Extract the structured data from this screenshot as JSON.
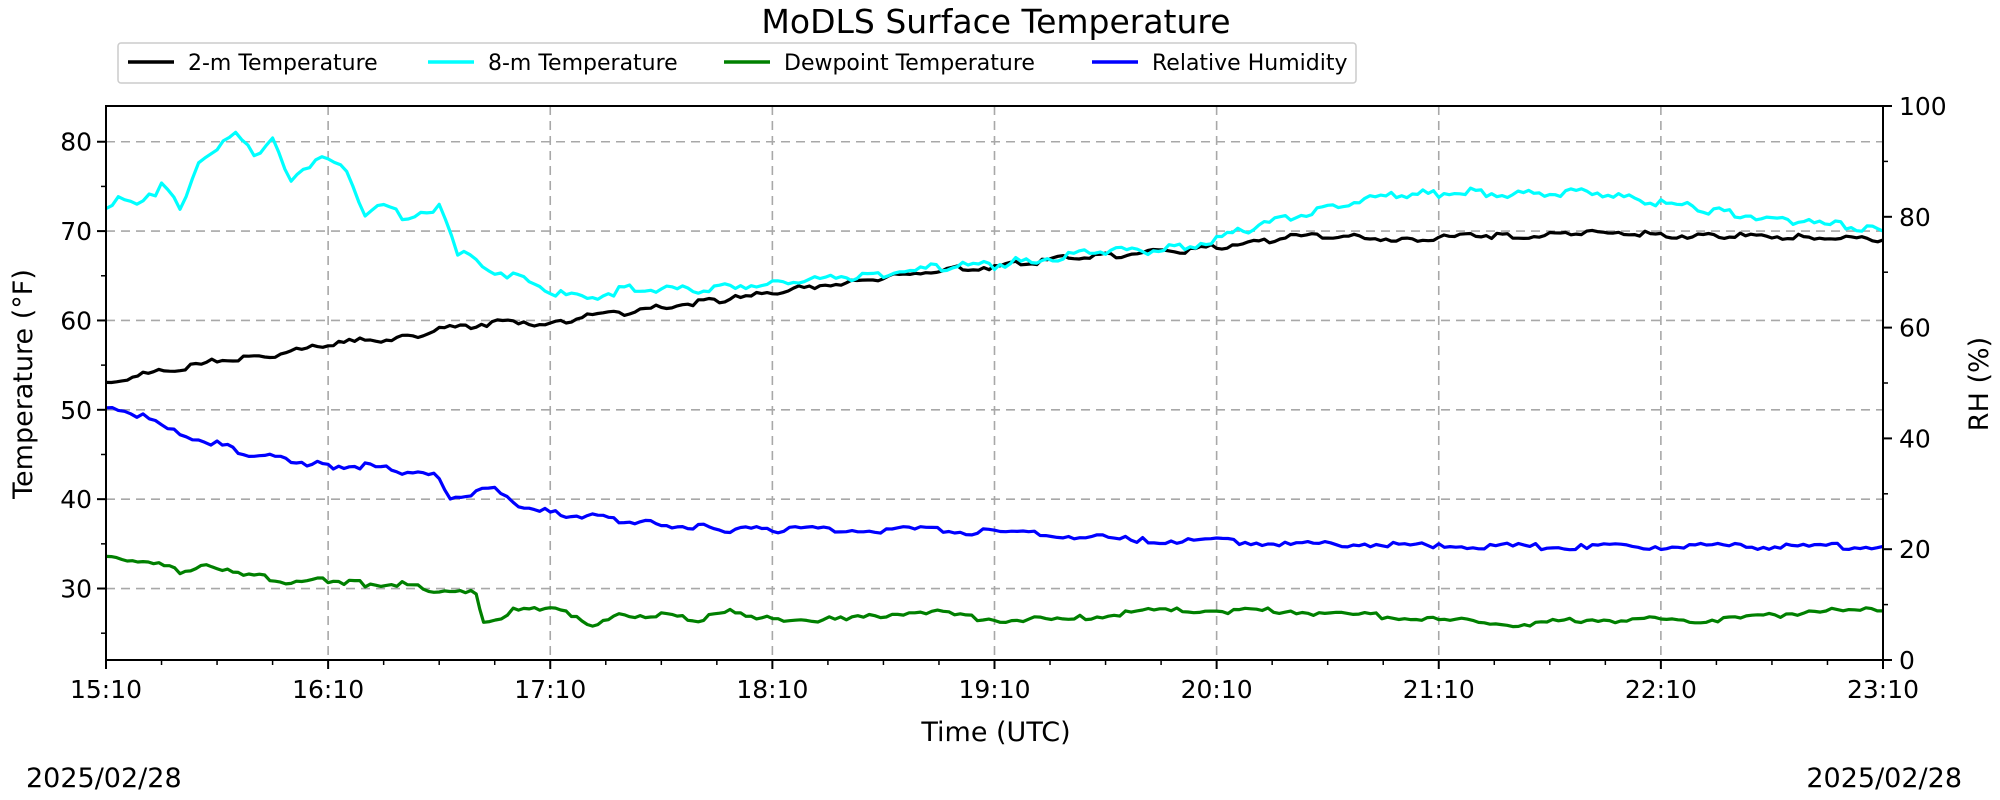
{
  "chart_data": {
    "type": "line",
    "title": "MoDLS Surface Temperature",
    "xlabel": "Time (UTC)",
    "ylabel_left": "Temperature (°F)",
    "ylabel_right": "RH (%)",
    "x_ticks": [
      "15:10",
      "16:10",
      "17:10",
      "18:10",
      "19:10",
      "20:10",
      "21:10",
      "22:10",
      "23:10"
    ],
    "x_range_minutes": [
      0,
      480
    ],
    "ylim_left": [
      22,
      84
    ],
    "ylim_right": [
      0,
      100
    ],
    "y_ticks_left": [
      30,
      40,
      50,
      60,
      70,
      80
    ],
    "y_ticks_right": [
      0,
      20,
      40,
      60,
      80,
      100
    ],
    "grid": true,
    "legend_placement": "top-left, above plot",
    "date_left": "2025/02/28",
    "date_right": "2025/02/28",
    "series": [
      {
        "name": "2-m Temperature",
        "axis": "left",
        "color": "#000000",
        "x": [
          0,
          10,
          20,
          30,
          40,
          50,
          60,
          70,
          80,
          90,
          100,
          110,
          120,
          130,
          140,
          150,
          160,
          170,
          180,
          190,
          200,
          210,
          220,
          230,
          240,
          250,
          260,
          270,
          280,
          290,
          300,
          310,
          320,
          330,
          340,
          350,
          360,
          370,
          380,
          390,
          400,
          410,
          420,
          430,
          440,
          450,
          460,
          470,
          480
        ],
        "values": [
          53,
          54,
          54.5,
          55.5,
          55.8,
          56.5,
          57.2,
          57.8,
          58,
          59,
          59.5,
          60,
          59.5,
          60.5,
          60.8,
          61.5,
          62,
          62.5,
          63,
          63.8,
          64.2,
          64.8,
          65.3,
          65.8,
          66,
          66.5,
          67,
          67.3,
          67.5,
          67.8,
          68.2,
          68.8,
          69.3,
          69.5,
          69.3,
          69,
          69.2,
          69.5,
          69.5,
          69.6,
          69.8,
          69.7,
          69.6,
          69.5,
          69.5,
          69.4,
          69.3,
          69.2,
          69
        ]
      },
      {
        "name": "8-m Temperature",
        "axis": "left",
        "color": "#00ffff",
        "x": [
          0,
          5,
          10,
          15,
          20,
          25,
          30,
          35,
          40,
          45,
          50,
          55,
          60,
          65,
          70,
          75,
          80,
          85,
          90,
          95,
          100,
          105,
          110,
          120,
          130,
          140,
          150,
          160,
          170,
          180,
          190,
          200,
          210,
          220,
          230,
          240,
          250,
          260,
          270,
          280,
          290,
          300,
          310,
          320,
          330,
          340,
          350,
          360,
          370,
          380,
          390,
          400,
          410,
          420,
          430,
          440,
          450,
          460,
          470,
          480
        ],
        "values": [
          73,
          74,
          73,
          75,
          72.5,
          78,
          79,
          81,
          78.5,
          80.5,
          75.5,
          77,
          78.5,
          77,
          71.5,
          73,
          71.5,
          72,
          72.5,
          67.5,
          67,
          65,
          65,
          63,
          62.5,
          63.5,
          63.5,
          63.5,
          64,
          64,
          64.5,
          64.8,
          65.2,
          65.8,
          66,
          66.2,
          66.8,
          67.2,
          67.8,
          67.8,
          68.2,
          69,
          70.5,
          71.5,
          72.5,
          73.5,
          74,
          74.2,
          74.5,
          74,
          74.3,
          74.5,
          73.8,
          73.2,
          72.5,
          72,
          71.5,
          71,
          70.5,
          70
        ]
      },
      {
        "name": "Dewpoint Temperature",
        "axis": "left",
        "color": "#008000",
        "x": [
          0,
          10,
          20,
          30,
          40,
          50,
          60,
          70,
          80,
          90,
          100,
          102,
          110,
          120,
          130,
          140,
          150,
          160,
          170,
          180,
          200,
          220,
          240,
          260,
          280,
          300,
          320,
          340,
          360,
          380,
          400,
          420,
          440,
          460,
          480
        ],
        "values": [
          33.5,
          33,
          32,
          32.5,
          31.5,
          30.5,
          31,
          30.5,
          30.5,
          29.5,
          29.5,
          26,
          27.5,
          28,
          26,
          27,
          27,
          26.5,
          27.5,
          26.5,
          26.5,
          27.5,
          26.5,
          26.5,
          27.5,
          27.5,
          27.5,
          27,
          26.5,
          26,
          26.5,
          26.5,
          26.5,
          27.5,
          27.5
        ]
      },
      {
        "name": "Relative Humidity",
        "axis": "right",
        "color": "#0000ff",
        "x": [
          0,
          5,
          10,
          15,
          20,
          25,
          30,
          40,
          50,
          60,
          70,
          80,
          90,
          93,
          100,
          105,
          110,
          120,
          130,
          140,
          150,
          160,
          170,
          180,
          200,
          220,
          240,
          260,
          280,
          300,
          320,
          340,
          360,
          380,
          400,
          420,
          440,
          460,
          480
        ],
        "values": [
          46,
          45,
          44,
          42,
          41,
          40,
          39,
          37,
          36,
          35,
          35,
          34,
          33,
          29,
          30,
          31.5,
          28.5,
          26.5,
          26,
          25,
          24.5,
          24,
          23.5,
          23.5,
          23.5,
          23.5,
          23,
          22.5,
          21.5,
          21.5,
          21,
          21,
          20.5,
          20.5,
          20.5,
          20.5,
          20.5,
          20.5,
          20.5
        ]
      }
    ]
  }
}
